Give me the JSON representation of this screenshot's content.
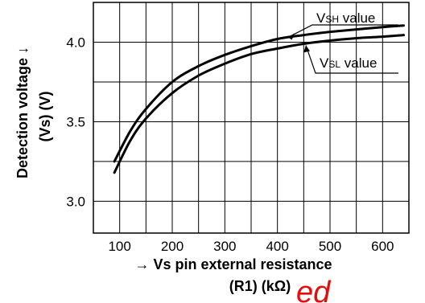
{
  "chart_data": {
    "type": "line",
    "xlabel_line1": "→ Vs pin external resistance",
    "xlabel_line2": "(R1) (kΩ)",
    "ylabel_line1": "Detection voltage ↓",
    "ylabel_line2": "(Vs) (V)",
    "xlim": [
      50,
      650
    ],
    "ylim": [
      2.8,
      4.25
    ],
    "x_ticks": [
      100,
      200,
      300,
      400,
      500,
      600
    ],
    "x_tick_labels": [
      "100",
      "200",
      "300",
      "400",
      "500",
      "600"
    ],
    "y_ticks": [
      3.0,
      3.5,
      4.0
    ],
    "y_tick_labels": [
      "3.0",
      "3.5",
      "4.0"
    ],
    "grid": true,
    "series": [
      {
        "name": "VSH value",
        "name_main": "V",
        "name_sub": "SH",
        "name_tail": " value",
        "x": [
          90,
          120,
          150,
          200,
          250,
          300,
          350,
          400,
          450,
          500,
          550,
          600,
          640
        ],
        "y": [
          3.25,
          3.44,
          3.58,
          3.75,
          3.85,
          3.92,
          3.975,
          4.02,
          4.045,
          4.065,
          4.08,
          4.095,
          4.105
        ]
      },
      {
        "name": "VSL value",
        "name_main": "V",
        "name_sub": "SL",
        "name_tail": " value",
        "x": [
          90,
          120,
          150,
          200,
          250,
          300,
          350,
          400,
          450,
          500,
          550,
          600,
          640
        ],
        "y": [
          3.18,
          3.38,
          3.52,
          3.68,
          3.79,
          3.865,
          3.925,
          3.96,
          3.99,
          4.01,
          4.025,
          4.035,
          4.045
        ]
      }
    ]
  },
  "watermark": "ed"
}
